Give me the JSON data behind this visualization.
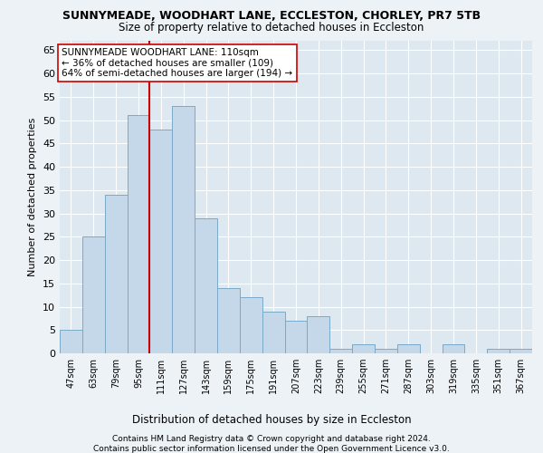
{
  "title": "SUNNYMEADE, WOODHART LANE, ECCLESTON, CHORLEY, PR7 5TB",
  "subtitle": "Size of property relative to detached houses in Eccleston",
  "xlabel": "Distribution of detached houses by size in Eccleston",
  "ylabel": "Number of detached properties",
  "categories": [
    "47sqm",
    "63sqm",
    "79sqm",
    "95sqm",
    "111sqm",
    "127sqm",
    "143sqm",
    "159sqm",
    "175sqm",
    "191sqm",
    "207sqm",
    "223sqm",
    "239sqm",
    "255sqm",
    "271sqm",
    "287sqm",
    "303sqm",
    "319sqm",
    "335sqm",
    "351sqm",
    "367sqm"
  ],
  "values": [
    5,
    25,
    34,
    51,
    48,
    53,
    29,
    14,
    12,
    9,
    7,
    8,
    1,
    2,
    1,
    2,
    0,
    2,
    0,
    1,
    1
  ],
  "bar_color": "#c5d8ea",
  "bar_edge_color": "#7aaac8",
  "vline_index": 4,
  "marker_label": "SUNNYMEADE WOODHART LANE: 110sqm",
  "annotation_line1": "← 36% of detached houses are smaller (109)",
  "annotation_line2": "64% of semi-detached houses are larger (194) →",
  "vline_color": "#cc0000",
  "ylim": [
    0,
    67
  ],
  "yticks": [
    0,
    5,
    10,
    15,
    20,
    25,
    30,
    35,
    40,
    45,
    50,
    55,
    60,
    65
  ],
  "bg_color": "#edf2f7",
  "plot_bg_color": "#dde8f0",
  "grid_color": "#ffffff",
  "footnote1": "Contains HM Land Registry data © Crown copyright and database right 2024.",
  "footnote2": "Contains public sector information licensed under the Open Government Licence v3.0."
}
